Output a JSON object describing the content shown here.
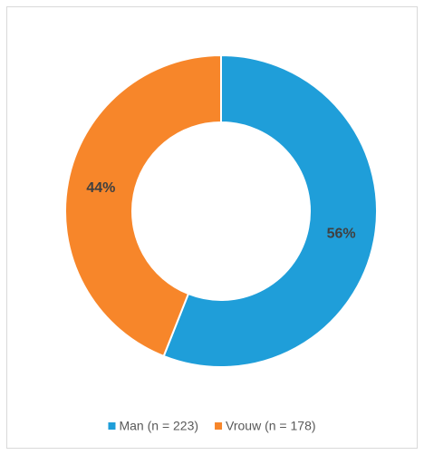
{
  "chart_data": {
    "type": "donut",
    "categories": [
      "Man (n = 223)",
      "Vrouw (n = 178)"
    ],
    "values": [
      56,
      44
    ],
    "value_labels": [
      "56%",
      "44%"
    ],
    "colors": [
      "#1f9ed9",
      "#f7862a"
    ],
    "legend": "bottom"
  }
}
